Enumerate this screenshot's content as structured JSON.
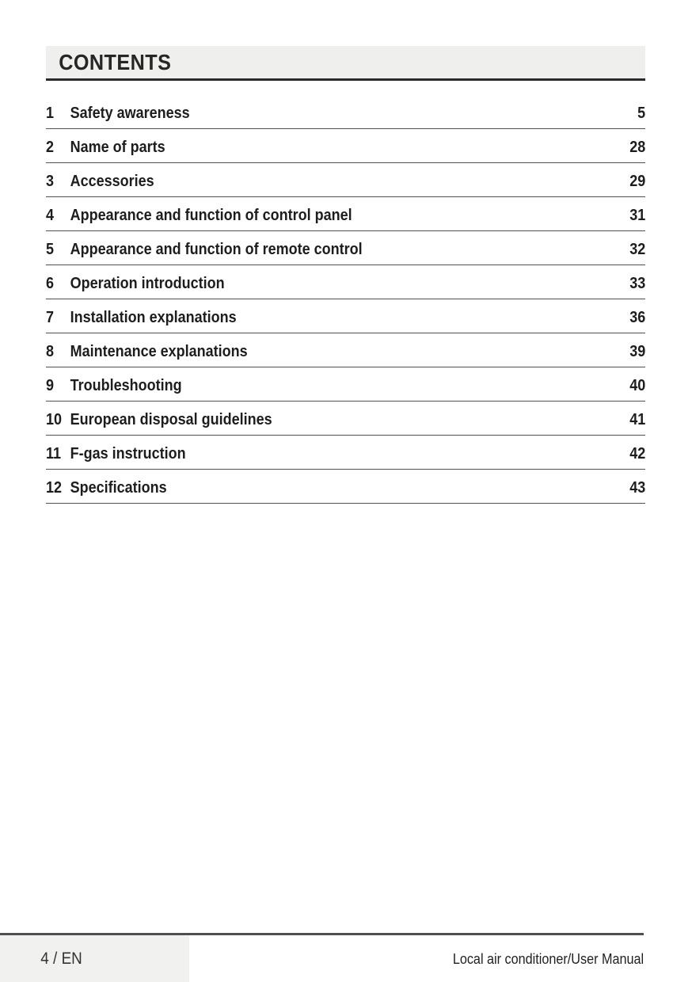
{
  "header": {
    "title": "CONTENTS"
  },
  "toc": {
    "entries": [
      {
        "number": "1",
        "title": "Safety awareness",
        "page": "5"
      },
      {
        "number": "2",
        "title": "Name of parts",
        "page": "28"
      },
      {
        "number": "3",
        "title": "Accessories",
        "page": "29"
      },
      {
        "number": "4",
        "title": "Appearance and function of control panel",
        "page": "31"
      },
      {
        "number": "5",
        "title": "Appearance and function of remote control",
        "page": "32"
      },
      {
        "number": "6",
        "title": "Operation introduction",
        "page": "33"
      },
      {
        "number": "7",
        "title": "Installation explanations",
        "page": "36"
      },
      {
        "number": "8",
        "title": "Maintenance explanations",
        "page": "39"
      },
      {
        "number": "9",
        "title": "Troubleshooting",
        "page": "40"
      },
      {
        "number": "10",
        "title": "European disposal guidelines",
        "page": "41"
      },
      {
        "number": "11",
        "title": "F-gas instruction",
        "page": "42"
      },
      {
        "number": "12",
        "title": "Specifications",
        "page": "43"
      }
    ]
  },
  "footer": {
    "page_label": "4 / EN",
    "manual_label": "Local air conditioner/User Manual"
  },
  "colors": {
    "header_bg": "#efefed",
    "header_border": "#2b2b2b",
    "row_line": "#505052",
    "text": "#1d1d1f",
    "footer_bg": "#f1f1ef",
    "footer_line": "#4f4f4f"
  }
}
